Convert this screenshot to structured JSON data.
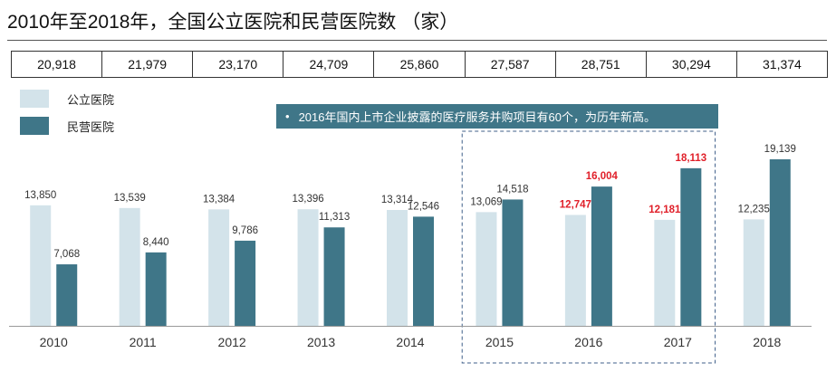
{
  "title": "2010年至2018年，全国公立医院和民营医院数 （家）",
  "totals": [
    "20,918",
    "21,979",
    "23,170",
    "24,709",
    "25,860",
    "27,587",
    "28,751",
    "30,294",
    "31,374"
  ],
  "callout": {
    "bullet": "•",
    "text": "2016年国内上市企业披露的医疗服务并购项目有60个，为历年新高。"
  },
  "colors": {
    "public": "#d3e3ea",
    "private": "#3f7688",
    "highlight_label": "#e0202a",
    "normal_label": "#333333",
    "axis": "#999999"
  },
  "chart_data": {
    "type": "bar",
    "categories": [
      "2010",
      "2011",
      "2012",
      "2013",
      "2014",
      "2015",
      "2016",
      "2017",
      "2018"
    ],
    "series": [
      {
        "name": "公立医院",
        "values": [
          13850,
          13539,
          13384,
          13396,
          13314,
          13069,
          12747,
          12181,
          12235
        ],
        "labels": [
          "13,850",
          "13,539",
          "13,384",
          "13,396",
          "13,314",
          "13,069",
          "12,747",
          "12,181",
          "12,235"
        ]
      },
      {
        "name": "民营医院",
        "values": [
          7068,
          8440,
          9786,
          11313,
          12546,
          14518,
          16004,
          18113,
          19139
        ],
        "labels": [
          "7,068",
          "8,440",
          "9,786",
          "11,313",
          "12,546",
          "14,518",
          "16,004",
          "18,113",
          "19,139"
        ]
      }
    ],
    "highlighted_categories": [
      "2016",
      "2017"
    ],
    "boxed_categories": [
      "2015",
      "2016",
      "2017"
    ],
    "ylim": [
      0,
      19139
    ],
    "legend": "top-left",
    "grid": false
  }
}
